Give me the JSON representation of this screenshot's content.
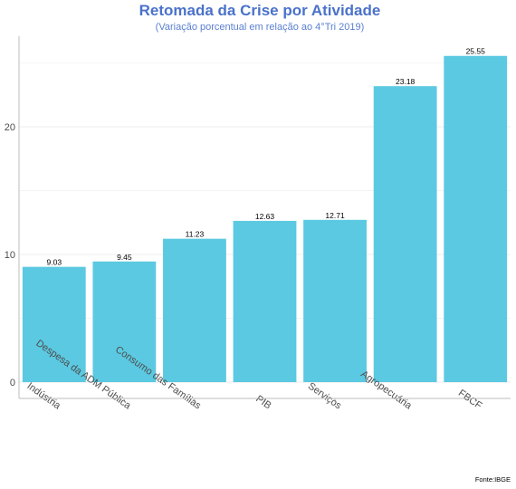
{
  "chart_data": {
    "type": "bar",
    "title": "Retomada da Crise por Atividade",
    "subtitle": "(Variação porcentual em relação ao 4°Tri 2019)",
    "source": "Fonte:IBGE",
    "xlabel": "",
    "ylabel": "",
    "categories": [
      "Indústria",
      "Despesa da ADM Pública",
      "Consumo das Famílias",
      "PIB",
      "Serviços",
      "Agropecuária",
      "FBCF"
    ],
    "values": [
      9.03,
      9.45,
      11.23,
      12.63,
      12.71,
      23.18,
      25.55
    ],
    "value_labels": [
      "9.03",
      "9.45",
      "11.23",
      "12.63",
      "12.71",
      "23.18",
      "25.55"
    ],
    "y_ticks": [
      0,
      10,
      20
    ],
    "y_tick_labels": [
      "0",
      "10",
      "20"
    ],
    "ylim": [
      0,
      27
    ],
    "grid": true,
    "legend": "none",
    "colors": {
      "bar": "#5bc9e1",
      "title": "#4a72c9",
      "subtitle": "#5a7fd0",
      "grid": "#ececec",
      "axis": "#bdbdbd"
    }
  }
}
